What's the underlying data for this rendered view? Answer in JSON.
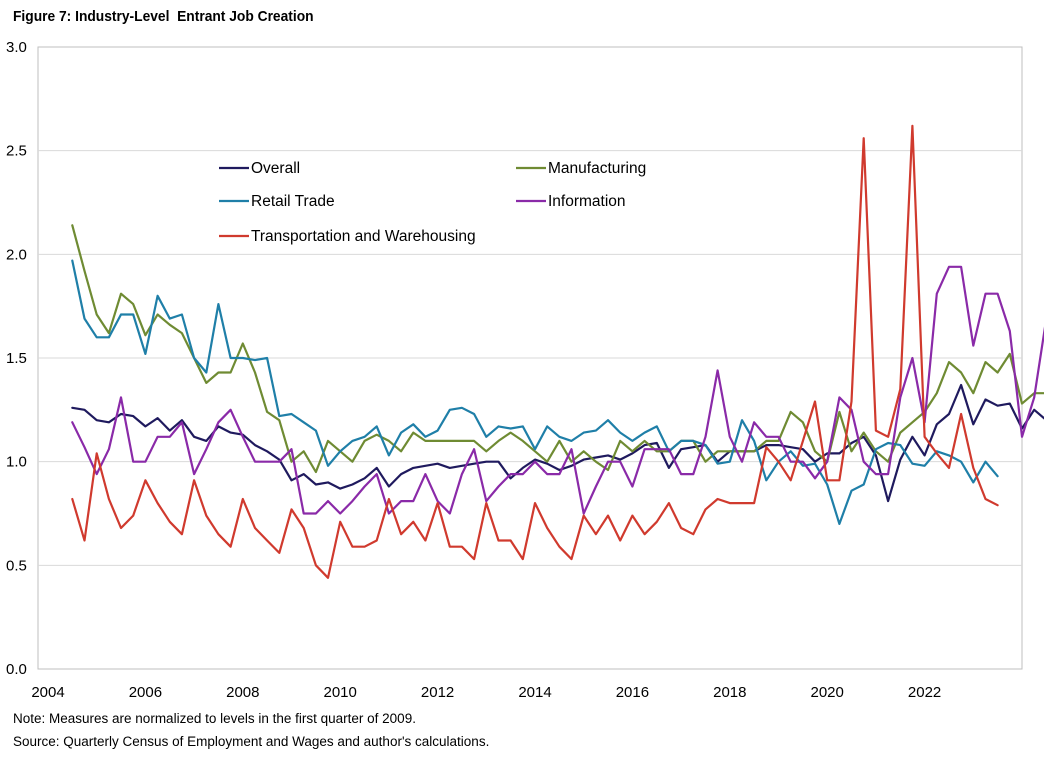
{
  "chart_data": {
    "type": "line",
    "title": "Figure 7: Industry-Level  Entrant Job Creation",
    "xlabel": "",
    "ylabel": "",
    "xlim": [
      2004,
      2024
    ],
    "ylim": [
      0,
      3
    ],
    "xticks": [
      2004,
      2006,
      2008,
      2010,
      2012,
      2014,
      2016,
      2018,
      2020,
      2022
    ],
    "xtick_labels": [
      "2004",
      "2006",
      "2008",
      "2010",
      "2012",
      "2014",
      "2016",
      "2018",
      "2020",
      "2022"
    ],
    "yticks": [
      0,
      0.5,
      1,
      1.5,
      2,
      2.5,
      3
    ],
    "ytick_labels": [
      "0.0",
      "0.5",
      "1.0",
      "1.5",
      "2.0",
      "2.5",
      "3.0"
    ],
    "grid": "horizontal",
    "legend_position": "upper-center",
    "x_start": 2004.5,
    "x_step": 0.25,
    "series": [
      {
        "name": "Overall",
        "color": "#1f1a5e",
        "values": [
          1.26,
          1.25,
          1.2,
          1.19,
          1.23,
          1.22,
          1.17,
          1.21,
          1.15,
          1.2,
          1.12,
          1.1,
          1.17,
          1.14,
          1.13,
          1.08,
          1.05,
          1.01,
          0.91,
          0.94,
          0.89,
          0.9,
          0.87,
          0.89,
          0.92,
          0.97,
          0.88,
          0.94,
          0.97,
          0.98,
          0.99,
          0.97,
          0.98,
          0.99,
          1.0,
          1.0,
          0.92,
          0.97,
          1.01,
          0.99,
          0.96,
          0.98,
          1.01,
          1.02,
          1.03,
          1.01,
          1.04,
          1.08,
          1.09,
          0.97,
          1.06,
          1.07,
          1.08,
          1.0,
          1.05,
          1.05,
          1.05,
          1.08,
          1.08,
          1.07,
          1.06,
          1.0,
          1.04,
          1.04,
          1.09,
          1.12,
          1.03,
          0.81,
          1.01,
          1.12,
          1.03,
          1.18,
          1.23,
          1.37,
          1.18,
          1.3,
          1.27,
          1.28,
          1.16,
          1.25,
          1.2
        ]
      },
      {
        "name": "Manufacturing",
        "color": "#6f8b33",
        "values": [
          2.14,
          1.92,
          1.71,
          1.62,
          1.81,
          1.76,
          1.61,
          1.71,
          1.66,
          1.62,
          1.5,
          1.38,
          1.43,
          1.43,
          1.57,
          1.43,
          1.24,
          1.2,
          1.0,
          1.05,
          0.95,
          1.1,
          1.05,
          1.0,
          1.1,
          1.13,
          1.1,
          1.05,
          1.14,
          1.1,
          1.1,
          1.1,
          1.1,
          1.1,
          1.05,
          1.1,
          1.14,
          1.1,
          1.05,
          1.0,
          1.1,
          1.0,
          1.05,
          1.0,
          0.96,
          1.1,
          1.05,
          1.1,
          1.05,
          1.05,
          1.1,
          1.1,
          1.0,
          1.05,
          1.05,
          1.05,
          1.05,
          1.1,
          1.1,
          1.24,
          1.19,
          1.05,
          1.0,
          1.24,
          1.05,
          1.14,
          1.05,
          1.0,
          1.14,
          1.19,
          1.24,
          1.33,
          1.48,
          1.43,
          1.33,
          1.48,
          1.43,
          1.52,
          1.28,
          1.33,
          1.33
        ]
      },
      {
        "name": "Retail Trade",
        "color": "#1f7fa8",
        "values": [
          1.97,
          1.69,
          1.6,
          1.6,
          1.71,
          1.71,
          1.52,
          1.8,
          1.69,
          1.71,
          1.5,
          1.43,
          1.76,
          1.5,
          1.5,
          1.49,
          1.5,
          1.22,
          1.23,
          1.19,
          1.15,
          0.98,
          1.05,
          1.1,
          1.12,
          1.17,
          1.03,
          1.14,
          1.18,
          1.12,
          1.15,
          1.25,
          1.26,
          1.23,
          1.12,
          1.17,
          1.16,
          1.17,
          1.06,
          1.17,
          1.12,
          1.1,
          1.14,
          1.15,
          1.2,
          1.14,
          1.1,
          1.14,
          1.17,
          1.05,
          1.1,
          1.1,
          1.08,
          0.99,
          1.0,
          1.2,
          1.1,
          0.91,
          1.0,
          1.05,
          0.98,
          0.99,
          0.89,
          0.7,
          0.86,
          0.89,
          1.06,
          1.09,
          1.08,
          0.99,
          0.98,
          1.05,
          1.03,
          1.0,
          0.9,
          1.0,
          0.93
        ]
      },
      {
        "name": "Information",
        "color": "#8a2aa8",
        "values": [
          1.19,
          1.07,
          0.94,
          1.06,
          1.31,
          1.0,
          1.0,
          1.12,
          1.12,
          1.19,
          0.94,
          1.06,
          1.19,
          1.25,
          1.12,
          1.0,
          1.0,
          1.0,
          1.06,
          0.75,
          0.75,
          0.81,
          0.75,
          0.81,
          0.88,
          0.94,
          0.75,
          0.81,
          0.81,
          0.94,
          0.81,
          0.75,
          0.94,
          1.06,
          0.81,
          0.88,
          0.94,
          0.94,
          1.0,
          0.94,
          0.94,
          1.06,
          0.75,
          0.88,
          1.0,
          1.0,
          0.88,
          1.06,
          1.06,
          1.06,
          0.94,
          0.94,
          1.12,
          1.44,
          1.12,
          1.0,
          1.19,
          1.12,
          1.12,
          1.0,
          1.0,
          0.92,
          1.0,
          1.31,
          1.25,
          1.0,
          0.94,
          0.94,
          1.31,
          1.5,
          1.19,
          1.81,
          1.94,
          1.94,
          1.56,
          1.81,
          1.81,
          1.63,
          1.12,
          1.31,
          1.69
        ]
      },
      {
        "name": "Transportation and Warehousing",
        "color": "#d03a2e",
        "values": [
          0.82,
          0.62,
          1.04,
          0.82,
          0.68,
          0.74,
          0.91,
          0.8,
          0.71,
          0.65,
          0.91,
          0.74,
          0.65,
          0.59,
          0.82,
          0.68,
          0.62,
          0.56,
          0.77,
          0.68,
          0.5,
          0.44,
          0.71,
          0.59,
          0.59,
          0.62,
          0.82,
          0.65,
          0.71,
          0.62,
          0.8,
          0.59,
          0.59,
          0.53,
          0.8,
          0.62,
          0.62,
          0.53,
          0.8,
          0.68,
          0.59,
          0.53,
          0.74,
          0.65,
          0.74,
          0.62,
          0.74,
          0.65,
          0.71,
          0.8,
          0.68,
          0.65,
          0.77,
          0.82,
          0.8,
          0.8,
          0.8,
          1.07,
          1.0,
          0.91,
          1.1,
          1.29,
          0.91,
          0.91,
          1.29,
          2.56,
          1.15,
          1.12,
          1.35,
          2.62,
          1.12,
          1.04,
          0.97,
          1.23,
          0.97,
          0.82,
          0.79
        ]
      }
    ]
  },
  "notes": {
    "line1": "Note: Measures are normalized to levels in the first quarter of 2009.",
    "line2": "Source: Quarterly Census of Employment and Wages and author's calculations."
  }
}
